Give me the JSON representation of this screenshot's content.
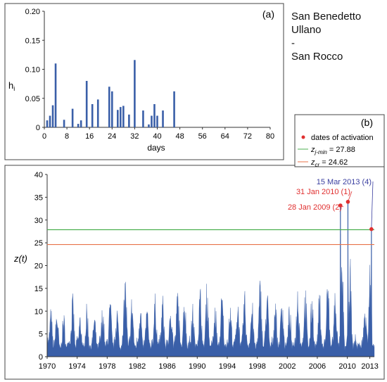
{
  "site_label": [
    "San Benedetto",
    "Ullano",
    "-",
    "San Rocco"
  ],
  "chart_data": [
    {
      "type": "bar",
      "panel": "(a)",
      "xlabel": "days",
      "ylabel": "h",
      "ylabel_sub": "i",
      "xlim": [
        0,
        80
      ],
      "ylim": [
        0,
        0.2
      ],
      "xticks": [
        0,
        8,
        16,
        24,
        32,
        40,
        48,
        56,
        64,
        72,
        80
      ],
      "yticks": [
        "0",
        "0.05",
        "0.10",
        "0.15",
        "0.20"
      ],
      "x": [
        1,
        2,
        3,
        4,
        7,
        10,
        12,
        13,
        15,
        17,
        19,
        23,
        24,
        26,
        27,
        28,
        30,
        32,
        35,
        37,
        38,
        39,
        40,
        42,
        46
      ],
      "values": [
        0.012,
        0.02,
        0.038,
        0.11,
        0.013,
        0.032,
        0.006,
        0.012,
        0.08,
        0.04,
        0.048,
        0.07,
        0.062,
        0.03,
        0.035,
        0.037,
        0.022,
        0.116,
        0.029,
        0.005,
        0.02,
        0.04,
        0.02,
        0.029,
        0.062
      ],
      "color": "#3a5fa8"
    },
    {
      "type": "area",
      "panel": "(b)",
      "ylabel": "z(t)",
      "xlim": [
        1970,
        2013.6
      ],
      "ylim": [
        0,
        40
      ],
      "xticks": [
        "1970",
        "1974",
        "1978",
        "1982",
        "1986",
        "1990",
        "1994",
        "1998",
        "2002",
        "2006",
        "2010",
        "2013"
      ],
      "yticks": [
        0,
        5,
        10,
        15,
        20,
        25,
        30,
        35,
        40
      ],
      "series_color": "#3a5fa8",
      "annual_peaks": {
        "x": [
          1970.5,
          1971.3,
          1972.2,
          1973.4,
          1974.4,
          1975.3,
          1976.3,
          1977.4,
          1978.4,
          1979.3,
          1980.4,
          1981.3,
          1982.4,
          1983.3,
          1984.4,
          1985.4,
          1986.5,
          1987.4,
          1988.3,
          1989.4,
          1990.4,
          1991.3,
          1992.4,
          1993.3,
          1994.4,
          1995.4,
          1996.3,
          1997.3,
          1998.4,
          1999.3,
          2000.4,
          2001.3,
          2002.3,
          2003.4,
          2004.4,
          2005.3,
          2006.3,
          2007.4,
          2008.4
        ],
        "values": [
          11,
          11,
          10,
          14,
          10,
          12,
          10,
          12,
          13,
          12,
          19,
          14,
          13,
          12,
          14,
          14,
          13,
          16,
          15,
          12,
          16,
          17,
          12,
          15,
          12,
          14,
          15,
          13,
          18,
          16,
          14,
          15,
          12,
          17,
          16,
          15,
          15,
          18,
          16
        ]
      },
      "activations": {
        "legend_label": "dates of activation",
        "color": "#e03030",
        "points": [
          {
            "x": 2009.08,
            "y": 33.2,
            "label": "28 Jan 2009 (2)",
            "color": "#e03030"
          },
          {
            "x": 2010.08,
            "y": 34.0,
            "label": "31 Jan 2010 (1)",
            "color": "#e03030"
          },
          {
            "x": 2013.21,
            "y": 28.0,
            "label": "15 Mar 2013 (4)",
            "color": "#3a3fa0"
          }
        ]
      },
      "thresholds": [
        {
          "name": "z",
          "sub": "j-min",
          "value": 27.88,
          "text": " = 27.88",
          "color": "#4caf50"
        },
        {
          "name": "z",
          "sub": "cr",
          "value": 24.62,
          "text": " = 24.62",
          "color": "#e8734a"
        }
      ]
    }
  ]
}
